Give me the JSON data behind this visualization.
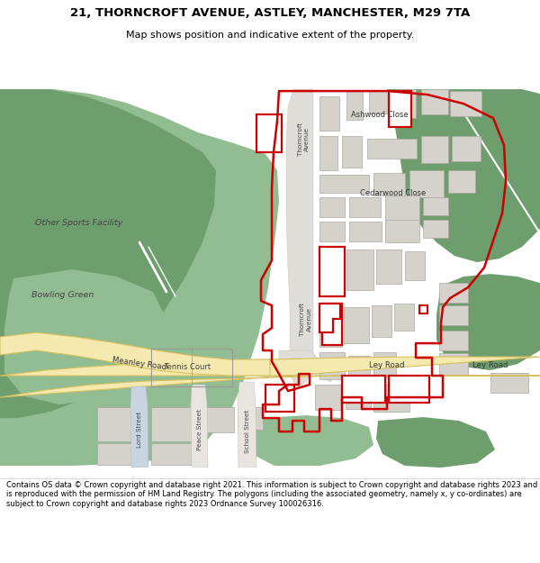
{
  "title_line1": "21, THORNCROFT AVENUE, ASTLEY, MANCHESTER, M29 7TA",
  "title_line2": "Map shows position and indicative extent of the property.",
  "footer_text": "Contains OS data © Crown copyright and database right 2021. This information is subject to Crown copyright and database rights 2023 and is reproduced with the permission of HM Land Registry. The polygons (including the associated geometry, namely x, y co-ordinates) are subject to Crown copyright and database rights 2023 Ordnance Survey 100026316.",
  "map_bg": "#f0ede8",
  "green_dark": "#6e9e6e",
  "green_medium": "#92bc92",
  "road_yellow": "#f5e9b0",
  "road_border": "#d4c060",
  "building_fill": "#d5d2cb",
  "building_edge": "#aaa89f",
  "red_line": "#cc0000",
  "white": "#ffffff",
  "road_strip": "#e8e5e0",
  "light_gray": "#e0ddd8"
}
